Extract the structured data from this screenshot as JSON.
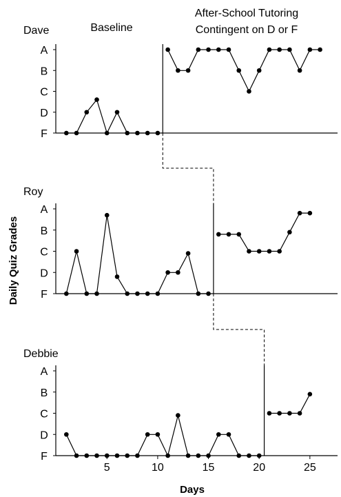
{
  "chart_data": {
    "type": "line",
    "ylabel": "Daily Quiz Grades",
    "xlabel": "Days",
    "grade_levels": [
      "A",
      "B",
      "C",
      "D",
      "F"
    ],
    "grade_values": [
      4,
      3,
      2,
      1,
      0
    ],
    "xlim": [
      0,
      27
    ],
    "ylim": [
      0,
      4
    ],
    "xticks": [
      5,
      10,
      15,
      20,
      25
    ],
    "phase_labels": {
      "baseline": "Baseline",
      "intervention_line1": "After-School Tutoring",
      "intervention_line2": "Contingent on D or F"
    },
    "panels": [
      {
        "name": "Dave",
        "phase_change_after_day": 10,
        "baseline": {
          "x": [
            1,
            2,
            3,
            4,
            5,
            6,
            7,
            8,
            9,
            10
          ],
          "y": [
            0,
            0,
            1,
            1.6,
            0,
            1,
            0,
            0,
            0,
            0
          ]
        },
        "intervention": {
          "x": [
            11,
            12,
            13,
            14,
            15,
            16,
            17,
            18,
            19,
            20,
            21,
            22,
            23,
            24,
            25,
            26
          ],
          "y": [
            4,
            3,
            3,
            4,
            4,
            4,
            4,
            3,
            2,
            3,
            4,
            4,
            4,
            3,
            4,
            4
          ]
        }
      },
      {
        "name": "Roy",
        "phase_change_after_day": 15,
        "baseline": {
          "x": [
            1,
            2,
            3,
            4,
            5,
            6,
            7,
            8,
            9,
            10,
            11,
            12,
            13,
            14,
            15
          ],
          "y": [
            0,
            2,
            0,
            0,
            3.7,
            0.8,
            0,
            0,
            0,
            0,
            1,
            1,
            1.9,
            0,
            0
          ]
        },
        "intervention": {
          "x": [
            16,
            17,
            18,
            19,
            20,
            21,
            22,
            23,
            24,
            25
          ],
          "y": [
            2.8,
            2.8,
            2.8,
            2,
            2,
            2,
            2,
            2.9,
            3.8,
            3.8
          ]
        }
      },
      {
        "name": "Debbie",
        "phase_change_after_day": 20,
        "baseline": {
          "x": [
            1,
            2,
            3,
            4,
            5,
            6,
            7,
            8,
            9,
            10,
            11,
            12,
            13,
            14,
            15,
            16,
            17,
            18,
            19,
            20
          ],
          "y": [
            1,
            0,
            0,
            0,
            0,
            0,
            0,
            0,
            1,
            1,
            0,
            1.9,
            0,
            0,
            0,
            1,
            1,
            0,
            0,
            0
          ]
        },
        "intervention": {
          "x": [
            21,
            22,
            23,
            24,
            25
          ],
          "y": [
            2,
            2,
            2,
            2,
            2.9
          ]
        }
      }
    ]
  }
}
